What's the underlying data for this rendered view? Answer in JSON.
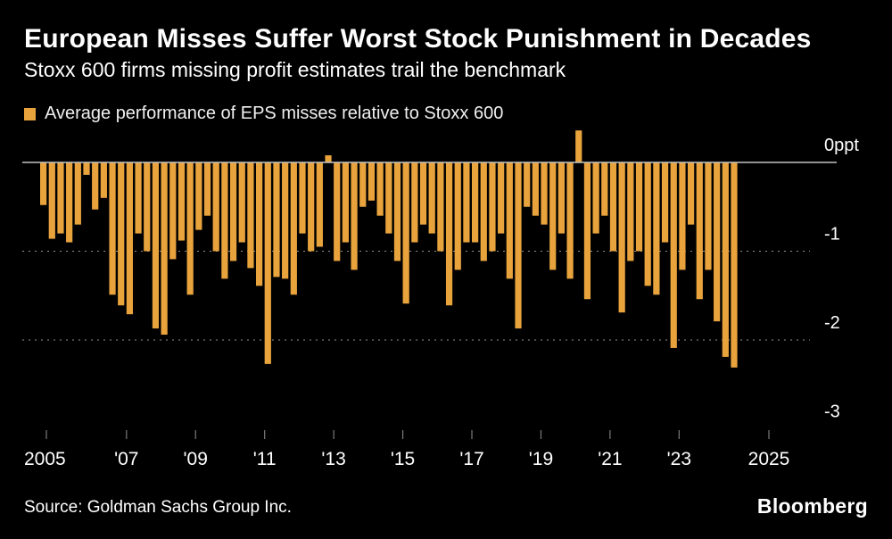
{
  "footer": {
    "brand": "Bloomberg"
  },
  "chart_data": {
    "type": "bar",
    "title": "European Misses Suffer Worst Stock Punishment in Decades",
    "subtitle": "Stoxx 600 firms missing profit estimates trail the benchmark",
    "legend_label": "Average performance of EPS misses relative to Stoxx 600",
    "source": "Source: Goldman Sachs Group Inc.",
    "unit": "ppt",
    "bar_color": "#E8A33D",
    "background_color": "#000000",
    "frequency": "quarterly",
    "start": "2005 Q1",
    "end": "2025 Q1",
    "values": [
      -0.48,
      -0.86,
      -0.8,
      -0.9,
      -0.7,
      -0.14,
      -0.53,
      -0.4,
      -1.49,
      -1.61,
      -1.71,
      -0.8,
      -1.0,
      -1.87,
      -1.94,
      -1.09,
      -0.88,
      -1.49,
      -0.76,
      -0.6,
      -1.0,
      -1.31,
      -1.11,
      -0.9,
      -1.19,
      -1.39,
      -2.27,
      -1.29,
      -1.31,
      -1.49,
      -0.8,
      -1.0,
      -0.95,
      0.08,
      -1.11,
      -0.9,
      -1.21,
      -0.5,
      -0.43,
      -0.6,
      -0.8,
      -1.11,
      -1.59,
      -0.9,
      -0.7,
      -0.8,
      -1.0,
      -1.61,
      -1.21,
      -0.9,
      -0.9,
      -1.11,
      -1.0,
      -0.8,
      -1.31,
      -1.87,
      -0.5,
      -0.6,
      -0.7,
      -1.21,
      -0.8,
      -1.31,
      0.36,
      -1.54,
      -0.8,
      -0.6,
      -1.0,
      -1.69,
      -1.11,
      -1.0,
      -1.39,
      -1.49,
      -0.9,
      -2.09,
      -1.21,
      -0.7,
      -1.54,
      -1.21,
      -1.79,
      -2.19,
      -2.31
    ],
    "ylim": [
      -3.3,
      0.6
    ],
    "yticks": [
      {
        "value": 0,
        "label": "0ppt",
        "line": "solid"
      },
      {
        "value": -1,
        "label": "-1",
        "line": "dashed"
      },
      {
        "value": -2,
        "label": "-2",
        "line": "dashed"
      },
      {
        "value": -3,
        "label": "-3",
        "line": "none"
      }
    ],
    "xticks": [
      {
        "year": 2005,
        "label": "2005"
      },
      {
        "year": 2007,
        "label": "'07"
      },
      {
        "year": 2009,
        "label": "'09"
      },
      {
        "year": 2011,
        "label": "'11"
      },
      {
        "year": 2013,
        "label": "'13"
      },
      {
        "year": 2015,
        "label": "'15"
      },
      {
        "year": 2017,
        "label": "'17"
      },
      {
        "year": 2019,
        "label": "'19"
      },
      {
        "year": 2021,
        "label": "'21"
      },
      {
        "year": 2023,
        "label": "'23"
      },
      {
        "year": 2025,
        "label": "2025"
      }
    ],
    "legend_position": "top-left",
    "grid": "horizontal-dashed"
  }
}
